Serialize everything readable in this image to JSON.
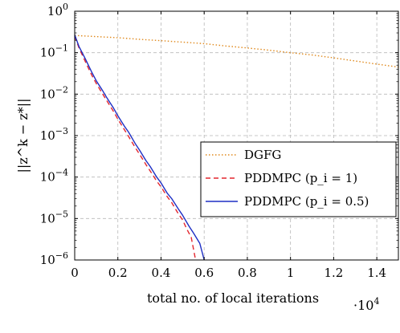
{
  "chart_data": {
    "type": "line",
    "title": "",
    "xlabel": "total no. of local iterations",
    "ylabel": "||z^k − z*||",
    "x_multiplier_label": "·10",
    "x_multiplier_exponent": "4",
    "xlim": [
      0,
      1.5
    ],
    "ylim": [
      1e-06,
      1
    ],
    "yscale": "log",
    "x_ticks": [
      {
        "value": 0,
        "label": "0"
      },
      {
        "value": 0.2,
        "label": "0.2"
      },
      {
        "value": 0.4,
        "label": "0.4"
      },
      {
        "value": 0.6,
        "label": "0.6"
      },
      {
        "value": 0.8,
        "label": "0.8"
      },
      {
        "value": 1.0,
        "label": "1"
      },
      {
        "value": 1.2,
        "label": "1.2"
      },
      {
        "value": 1.4,
        "label": "1.4"
      }
    ],
    "y_ticks": [
      {
        "value": 0,
        "base": "10",
        "exp": "0"
      },
      {
        "value": -1,
        "base": "10",
        "exp": "−1"
      },
      {
        "value": -2,
        "base": "10",
        "exp": "−2"
      },
      {
        "value": -3,
        "base": "10",
        "exp": "−3"
      },
      {
        "value": -4,
        "base": "10",
        "exp": "−4"
      },
      {
        "value": -5,
        "base": "10",
        "exp": "−5"
      },
      {
        "value": -6,
        "base": "10",
        "exp": "−6"
      }
    ],
    "grid": true,
    "legend_position": "right",
    "series": [
      {
        "name": "DGFG",
        "color": "#e08a1e",
        "style": "dotted",
        "points": [
          [
            0,
            0.26
          ],
          [
            0.1,
            0.245
          ],
          [
            0.2,
            0.23
          ],
          [
            0.3,
            0.21
          ],
          [
            0.4,
            0.195
          ],
          [
            0.5,
            0.18
          ],
          [
            0.6,
            0.165
          ],
          [
            0.7,
            0.145
          ],
          [
            0.8,
            0.13
          ],
          [
            0.9,
            0.115
          ],
          [
            1.0,
            0.1
          ],
          [
            1.1,
            0.088
          ],
          [
            1.2,
            0.075
          ],
          [
            1.3,
            0.063
          ],
          [
            1.4,
            0.053
          ],
          [
            1.5,
            0.045
          ]
        ]
      },
      {
        "name": "PDDMPC (p_i = 1)",
        "color": "#e3262e",
        "style": "dashed",
        "points": [
          [
            0,
            0.25
          ],
          [
            0.02,
            0.13
          ],
          [
            0.05,
            0.06
          ],
          [
            0.08,
            0.028
          ],
          [
            0.1,
            0.018
          ],
          [
            0.13,
            0.01
          ],
          [
            0.15,
            0.0068
          ],
          [
            0.18,
            0.0038
          ],
          [
            0.2,
            0.0025
          ],
          [
            0.23,
            0.0014
          ],
          [
            0.25,
            0.00095
          ],
          [
            0.28,
            0.00052
          ],
          [
            0.3,
            0.00036
          ],
          [
            0.33,
            0.0002
          ],
          [
            0.35,
            0.00014
          ],
          [
            0.38,
            8e-05
          ],
          [
            0.4,
            5.8e-05
          ],
          [
            0.43,
            3.3e-05
          ],
          [
            0.45,
            2.4e-05
          ],
          [
            0.48,
            1.3e-05
          ],
          [
            0.5,
            9.3e-06
          ],
          [
            0.52,
            5.5e-06
          ],
          [
            0.54,
            3.5e-06
          ],
          [
            0.56,
            1e-06
          ]
        ]
      },
      {
        "name": "PDDMPC (p_i = 0.5)",
        "color": "#1d2ec4",
        "style": "solid",
        "points": [
          [
            0,
            0.27
          ],
          [
            0.02,
            0.14
          ],
          [
            0.05,
            0.07
          ],
          [
            0.08,
            0.033
          ],
          [
            0.1,
            0.021
          ],
          [
            0.13,
            0.012
          ],
          [
            0.15,
            0.008
          ],
          [
            0.18,
            0.0046
          ],
          [
            0.2,
            0.003
          ],
          [
            0.23,
            0.0017
          ],
          [
            0.25,
            0.0012
          ],
          [
            0.28,
            0.00065
          ],
          [
            0.3,
            0.00045
          ],
          [
            0.33,
            0.00025
          ],
          [
            0.35,
            0.00018
          ],
          [
            0.38,
            0.0001
          ],
          [
            0.4,
            7.2e-05
          ],
          [
            0.43,
            4e-05
          ],
          [
            0.45,
            3e-05
          ],
          [
            0.48,
            1.7e-05
          ],
          [
            0.5,
            1.2e-05
          ],
          [
            0.53,
            6.5e-06
          ],
          [
            0.55,
            4.5e-06
          ],
          [
            0.58,
            2.5e-06
          ],
          [
            0.6,
            1e-06
          ]
        ]
      }
    ]
  }
}
